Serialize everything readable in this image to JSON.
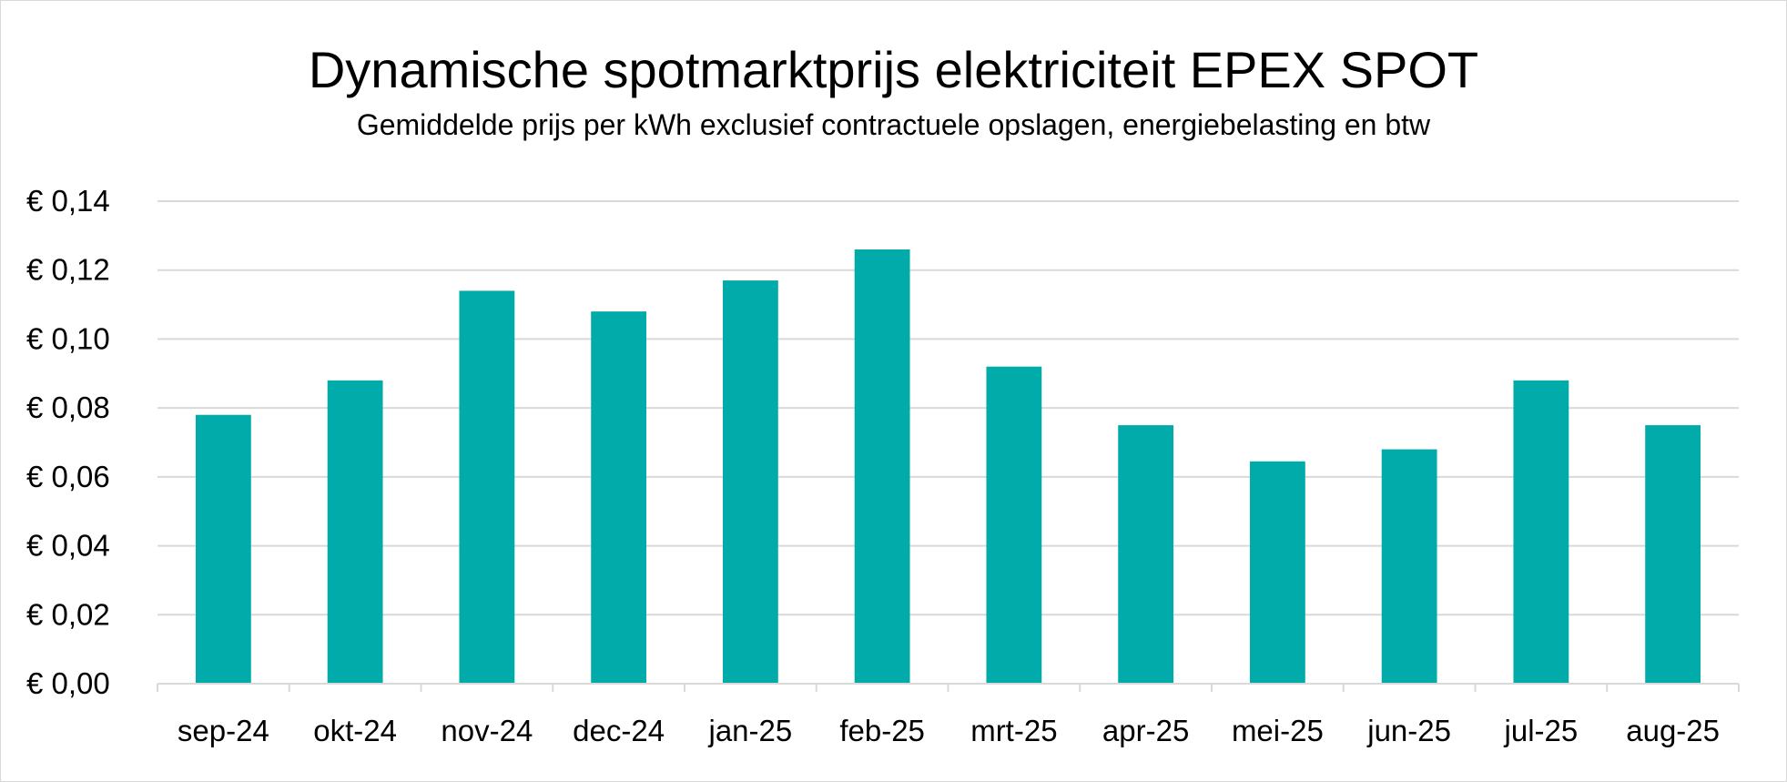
{
  "chart_data": {
    "type": "bar",
    "title": "Dynamische spotmarktprijs elektriciteit EPEX SPOT",
    "subtitle": "Gemiddelde prijs per kWh exclusief contractuele opslagen, energiebelasting en btw",
    "xlabel": "",
    "ylabel": "",
    "categories": [
      "sep-24",
      "okt-24",
      "nov-24",
      "dec-24",
      "jan-25",
      "feb-25",
      "mrt-25",
      "apr-25",
      "mei-25",
      "jun-25",
      "jul-25",
      "aug-25"
    ],
    "values": [
      0.078,
      0.088,
      0.114,
      0.108,
      0.117,
      0.126,
      0.092,
      0.075,
      0.0645,
      0.068,
      0.088,
      0.075
    ],
    "ylim": [
      0,
      0.14
    ],
    "yticks": [
      0,
      0.02,
      0.04,
      0.06,
      0.08,
      0.1,
      0.12,
      0.14
    ],
    "ytick_labels": [
      "€ 0,00",
      "€ 0,02",
      "€ 0,04",
      "€ 0,06",
      "€ 0,08",
      "€ 0,10",
      "€ 0,12",
      "€ 0,14"
    ],
    "grid": true,
    "legend": "none",
    "bar_color": "#00ABAA",
    "grid_color": "#d9d9d9",
    "axis_color": "#d9d9d9"
  }
}
